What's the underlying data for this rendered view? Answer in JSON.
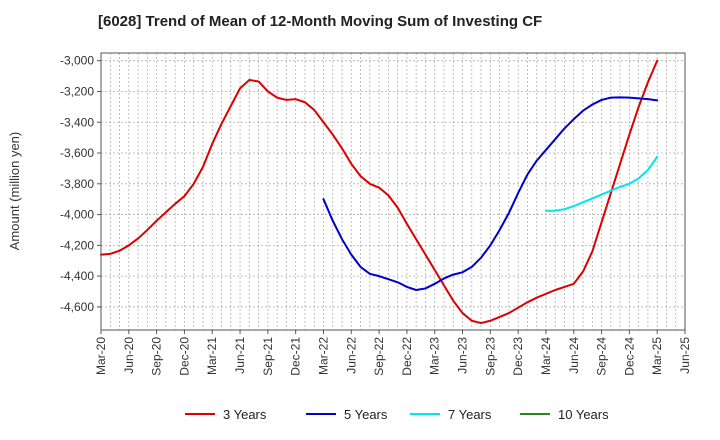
{
  "chart_data": {
    "type": "line",
    "title": "[6028]  Trend of Mean of 12-Month Moving Sum of Investing CF",
    "xlabel": "",
    "ylabel": "Amount (million yen)",
    "ylim": [
      -4750,
      -2950
    ],
    "yticks": [
      -3000,
      -3200,
      -3400,
      -3600,
      -3800,
      -4000,
      -4200,
      -4400,
      -4600
    ],
    "ytick_labels": [
      "-3,000",
      "-3,200",
      "-3,400",
      "-3,600",
      "-3,800",
      "-4,000",
      "-4,200",
      "-4,400",
      "-4,600"
    ],
    "x_start": "Mar-20",
    "x_months": 63,
    "xticks": [
      0,
      3,
      6,
      9,
      12,
      15,
      18,
      21,
      24,
      27,
      30,
      33,
      36,
      39,
      42,
      45,
      48,
      51,
      54,
      57,
      60,
      63
    ],
    "xtick_labels": [
      "Mar-20",
      "Jun-20",
      "Sep-20",
      "Dec-20",
      "Mar-21",
      "Jun-21",
      "Sep-21",
      "Dec-21",
      "Mar-22",
      "Jun-22",
      "Sep-22",
      "Dec-22",
      "Mar-23",
      "Jun-23",
      "Sep-23",
      "Dec-23",
      "Mar-24",
      "Jun-24",
      "Sep-24",
      "Dec-24",
      "Mar-25",
      "Jun-25"
    ],
    "grid": true,
    "legend_position": "bottom",
    "series": [
      {
        "name": "3 Years",
        "color": "#dd0000",
        "x": [
          0,
          1,
          2,
          3,
          4,
          5,
          6,
          7,
          8,
          9,
          10,
          11,
          12,
          13,
          14,
          15,
          16,
          17,
          18,
          19,
          20,
          21,
          22,
          23,
          24,
          25,
          26,
          27,
          28,
          29,
          30,
          31,
          32,
          33,
          34,
          35,
          36,
          37,
          38,
          39,
          40,
          41,
          42,
          43,
          44,
          45,
          46,
          47,
          48,
          49,
          50,
          51,
          52,
          53,
          54,
          55,
          56,
          57,
          58,
          59,
          60
        ],
        "values": [
          -4260,
          -4255,
          -4235,
          -4200,
          -4155,
          -4100,
          -4040,
          -3985,
          -3930,
          -3880,
          -3800,
          -3690,
          -3540,
          -3410,
          -3295,
          -3180,
          -3125,
          -3135,
          -3200,
          -3240,
          -3255,
          -3250,
          -3270,
          -3320,
          -3400,
          -3480,
          -3570,
          -3670,
          -3750,
          -3800,
          -3825,
          -3875,
          -3955,
          -4060,
          -4160,
          -4260,
          -4360,
          -4460,
          -4560,
          -4640,
          -4690,
          -4705,
          -4690,
          -4665,
          -4640,
          -4605,
          -4570,
          -4540,
          -4515,
          -4490,
          -4470,
          -4450,
          -4370,
          -4240,
          -4050,
          -3860,
          -3670,
          -3480,
          -3300,
          -3140,
          -3000
        ]
      },
      {
        "name": "5 Years",
        "color": "#0000cc",
        "x": [
          24,
          25,
          26,
          27,
          28,
          29,
          30,
          31,
          32,
          33,
          34,
          35,
          36,
          37,
          38,
          39,
          40,
          41,
          42,
          43,
          44,
          45,
          46,
          47,
          48,
          49,
          50,
          51,
          52,
          53,
          54,
          55,
          56,
          57,
          58,
          59,
          60
        ],
        "values": [
          -3900,
          -4040,
          -4160,
          -4260,
          -4340,
          -4385,
          -4400,
          -4420,
          -4440,
          -4470,
          -4490,
          -4480,
          -4450,
          -4415,
          -4390,
          -4375,
          -4340,
          -4280,
          -4200,
          -4100,
          -3990,
          -3860,
          -3740,
          -3650,
          -3580,
          -3510,
          -3440,
          -3380,
          -3325,
          -3285,
          -3255,
          -3240,
          -3238,
          -3240,
          -3245,
          -3250,
          -3258
        ]
      },
      {
        "name": "7 Years",
        "color": "#00e5ee",
        "x": [
          48,
          49,
          50,
          51,
          52,
          53,
          54,
          55,
          56,
          57,
          58,
          59,
          60
        ],
        "values": [
          -3975,
          -3975,
          -3965,
          -3945,
          -3920,
          -3895,
          -3870,
          -3845,
          -3820,
          -3800,
          -3765,
          -3710,
          -3625
        ]
      },
      {
        "name": "10 Years",
        "color": "#228b22",
        "x": [],
        "values": []
      }
    ]
  }
}
